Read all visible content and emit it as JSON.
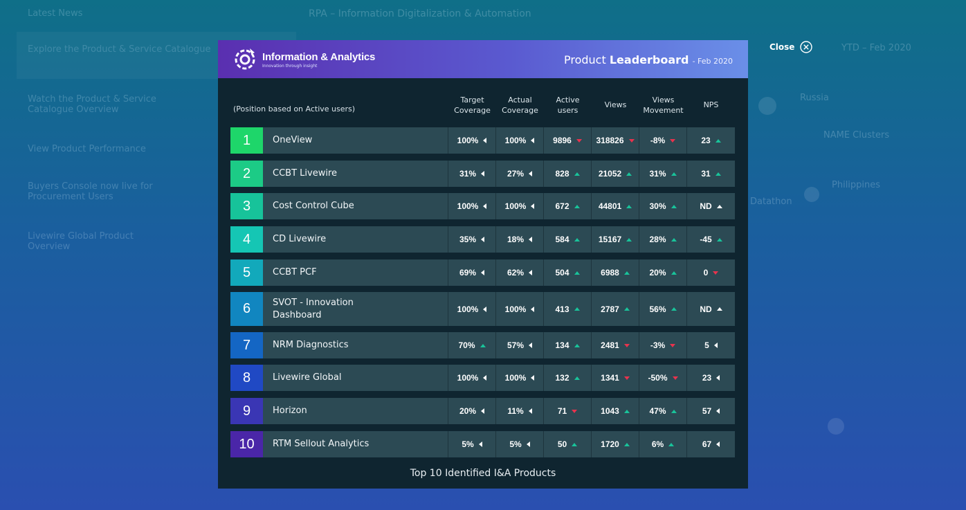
{
  "background": {
    "left_items": [
      "Latest News",
      "Explore the Product & Service Catalogue",
      "Watch the Product & Service Catalogue Overview",
      "View Product Performance",
      "Buyers Console now live for Procurement Users",
      "Livewire Global Product Overview"
    ],
    "title": "RPA – Information Digitalization & Automation",
    "right_texts": [
      "YTD – Feb 2020",
      "Russia",
      "NAME Clusters",
      "Philippines",
      "Datathon"
    ]
  },
  "modal": {
    "brand_name": "Information & Analytics",
    "brand_tagline": "Innovation through insight",
    "header_product": "Product",
    "header_leaderboard": "Leaderboard",
    "header_date": "- Feb 2020",
    "position_note": "(Position based on Active users)",
    "columns": [
      "Target\nCoverage",
      "Actual\nCoverage",
      "Active\nusers",
      "Views",
      "Views\nMovement",
      "NPS"
    ],
    "footer": "Top 10 Identified I&A Products",
    "close_label": "Close"
  },
  "rows": [
    {
      "rank": "1",
      "name": "OneView",
      "color": "#1ed66a",
      "cells": [
        [
          "100%",
          "left"
        ],
        [
          "100%",
          "left"
        ],
        [
          "9896",
          "down"
        ],
        [
          "318826",
          "down"
        ],
        [
          "-8%",
          "down"
        ],
        [
          "23",
          "up"
        ]
      ]
    },
    {
      "rank": "2",
      "name": "CCBT Livewire",
      "color": "#1ccb86",
      "cells": [
        [
          "31%",
          "left"
        ],
        [
          "27%",
          "left"
        ],
        [
          "828",
          "up"
        ],
        [
          "21052",
          "up"
        ],
        [
          "31%",
          "up"
        ],
        [
          "31",
          "up"
        ]
      ]
    },
    {
      "rank": "3",
      "name": "Cost Control Cube",
      "color": "#17c39a",
      "cells": [
        [
          "100%",
          "left"
        ],
        [
          "100%",
          "left"
        ],
        [
          "672",
          "up"
        ],
        [
          "44801",
          "up"
        ],
        [
          "30%",
          "up"
        ],
        [
          "ND",
          "up-white"
        ]
      ]
    },
    {
      "rank": "4",
      "name": "CD Livewire",
      "color": "#15c6b4",
      "cells": [
        [
          "35%",
          "left"
        ],
        [
          "18%",
          "left"
        ],
        [
          "584",
          "up"
        ],
        [
          "15167",
          "up"
        ],
        [
          "28%",
          "up"
        ],
        [
          "-45",
          "up"
        ]
      ]
    },
    {
      "rank": "5",
      "name": "CCBT PCF",
      "color": "#12a9bb",
      "cells": [
        [
          "69%",
          "left"
        ],
        [
          "62%",
          "left"
        ],
        [
          "504",
          "up"
        ],
        [
          "6988",
          "up"
        ],
        [
          "20%",
          "up"
        ],
        [
          "0",
          "down"
        ]
      ]
    },
    {
      "rank": "6",
      "name": "SVOT - Innovation Dashboard",
      "color": "#1186c0",
      "cells": [
        [
          "100%",
          "left"
        ],
        [
          "100%",
          "left"
        ],
        [
          "413",
          "up"
        ],
        [
          "2787",
          "up"
        ],
        [
          "56%",
          "up"
        ],
        [
          "ND",
          "up-white"
        ]
      ]
    },
    {
      "rank": "7",
      "name": "NRM Diagnostics",
      "color": "#1466c4",
      "cells": [
        [
          "70%",
          "up"
        ],
        [
          "57%",
          "left"
        ],
        [
          "134",
          "up"
        ],
        [
          "2481",
          "down"
        ],
        [
          "-3%",
          "down"
        ],
        [
          "5",
          "left"
        ]
      ]
    },
    {
      "rank": "8",
      "name": "Livewire Global",
      "color": "#2049c4",
      "cells": [
        [
          "100%",
          "left"
        ],
        [
          "100%",
          "left"
        ],
        [
          "132",
          "up"
        ],
        [
          "1341",
          "down"
        ],
        [
          "-50%",
          "down"
        ],
        [
          "23",
          "left"
        ]
      ]
    },
    {
      "rank": "9",
      "name": "Horizon",
      "color": "#3a36b4",
      "cells": [
        [
          "20%",
          "left"
        ],
        [
          "11%",
          "left"
        ],
        [
          "71",
          "down"
        ],
        [
          "1043",
          "up"
        ],
        [
          "47%",
          "up"
        ],
        [
          "57",
          "left"
        ]
      ]
    },
    {
      "rank": "10",
      "name": "RTM Sellout Analytics",
      "color": "#4a26a8",
      "cells": [
        [
          "5%",
          "left"
        ],
        [
          "5%",
          "left"
        ],
        [
          "50",
          "up"
        ],
        [
          "1720",
          "up"
        ],
        [
          "6%",
          "up"
        ],
        [
          "67",
          "left"
        ]
      ]
    }
  ]
}
